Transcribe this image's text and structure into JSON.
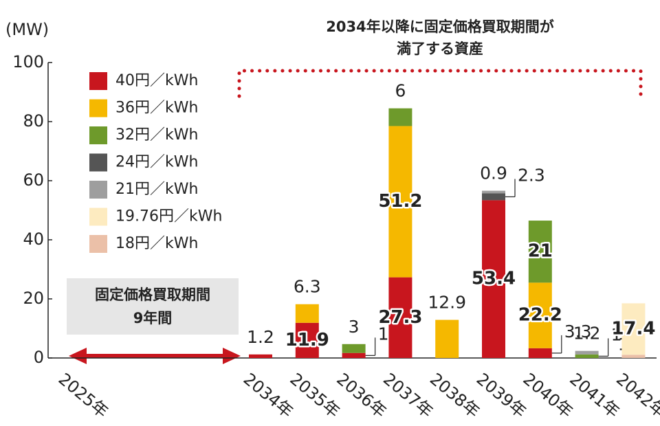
{
  "chart_data": {
    "type": "bar",
    "stacked": true,
    "y_label": "(MW)",
    "annotation": [
      "2034年以降に固定価格買取期間が",
      "満了する資産"
    ],
    "period_label": [
      "固定価格買取期間",
      "9年間"
    ],
    "categories": [
      "2025年",
      "2034年",
      "2035年",
      "2036年",
      "2037年",
      "2038年",
      "2039年",
      "2040年",
      "2041年",
      "2042年"
    ],
    "series": [
      {
        "name": "40円／kWh",
        "color": "#c8161e",
        "values": [
          null,
          1.2,
          11.9,
          1.7,
          27.3,
          null,
          53.4,
          3.3,
          null,
          null
        ]
      },
      {
        "name": "36円／kWh",
        "color": "#f5b800",
        "values": [
          null,
          null,
          6.3,
          null,
          51.2,
          12.9,
          null,
          22.2,
          null,
          null
        ]
      },
      {
        "name": "32円／kWh",
        "color": "#6e9a2b",
        "values": [
          null,
          null,
          null,
          3.0,
          6.0,
          null,
          null,
          21.0,
          1.2,
          null
        ]
      },
      {
        "name": "24円／kWh",
        "color": "#555555",
        "values": [
          null,
          null,
          null,
          null,
          null,
          null,
          2.3,
          null,
          null,
          null
        ]
      },
      {
        "name": "21円／kWh",
        "color": "#9e9e9e",
        "values": [
          null,
          null,
          null,
          null,
          null,
          null,
          0.9,
          null,
          1.2,
          null
        ]
      },
      {
        "name": "19.76円／kWh",
        "color": "#fdebc0",
        "values": [
          null,
          null,
          null,
          null,
          null,
          null,
          null,
          null,
          null,
          17.4
        ]
      },
      {
        "name": "18円／kWh",
        "color": "#ebc0a8",
        "values": [
          null,
          null,
          null,
          null,
          null,
          null,
          null,
          null,
          null,
          1.1
        ]
      }
    ],
    "ylim": [
      0,
      100
    ],
    "yticks": [
      0,
      20,
      40,
      60,
      80,
      100
    ],
    "grid": false,
    "legend": "upper left"
  }
}
